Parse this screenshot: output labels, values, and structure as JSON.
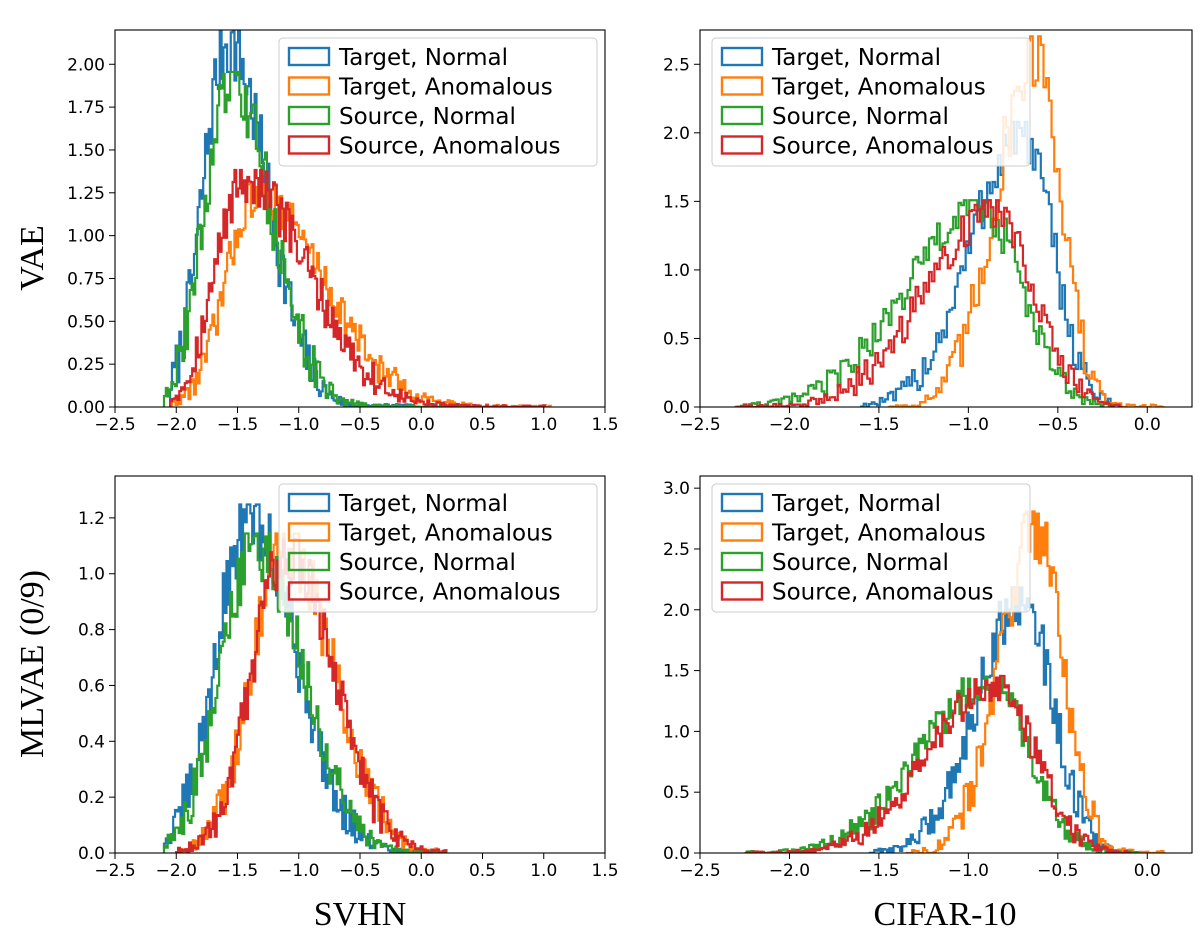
{
  "row_labels": [
    "VAE",
    "MLVAE (0/9)"
  ],
  "col_labels": [
    "SVHN",
    "CIFAR-10"
  ],
  "series_styles": [
    {
      "name": "Target, Normal",
      "color": "#1f77b4"
    },
    {
      "name": "Target, Anomalous",
      "color": "#ff7f0e"
    },
    {
      "name": "Source, Normal",
      "color": "#2ca02c"
    },
    {
      "name": "Source, Anomalous",
      "color": "#d62728"
    }
  ],
  "chart_data": [
    {
      "type": "histogram",
      "row_label": "VAE",
      "col_label": "SVHN",
      "xlim": [
        -2.5,
        1.5
      ],
      "ylim": [
        0,
        2.2
      ],
      "xticks": [
        -2.5,
        -2.0,
        -1.5,
        -1.0,
        -0.5,
        0.0,
        0.5,
        1.0,
        1.5
      ],
      "yticks": [
        0.0,
        0.25,
        0.5,
        0.75,
        1.0,
        1.25,
        1.5,
        1.75,
        2.0
      ],
      "ytick_labels": [
        "0.00",
        "0.25",
        "0.50",
        "0.75",
        "1.00",
        "1.25",
        "1.50",
        "1.75",
        "2.00"
      ],
      "xtick_labels": [
        "−2.5",
        "−2.0",
        "−1.5",
        "−1.0",
        "−0.5",
        "0.0",
        "0.5",
        "1.0",
        "1.5"
      ],
      "legend_position": "upper-right",
      "series": [
        {
          "name": "Target, Normal",
          "color": "#1f77b4",
          "peak_x": -1.58,
          "peak_y": 2.14,
          "range": [
            -2.05,
            0.3
          ],
          "left_width": 0.2,
          "right_width": 0.32
        },
        {
          "name": "Target, Anomalous",
          "color": "#ff7f0e",
          "peak_x": -1.35,
          "peak_y": 1.25,
          "range": [
            -2.05,
            1.05
          ],
          "left_width": 0.24,
          "right_width": 0.55
        },
        {
          "name": "Source, Normal",
          "color": "#2ca02c",
          "peak_x": -1.55,
          "peak_y": 1.88,
          "range": [
            -2.1,
            0.3
          ],
          "left_width": 0.22,
          "right_width": 0.33
        },
        {
          "name": "Source, Anomalous",
          "color": "#d62728",
          "peak_x": -1.45,
          "peak_y": 1.33,
          "range": [
            -2.05,
            1.0
          ],
          "left_width": 0.23,
          "right_width": 0.52
        }
      ]
    },
    {
      "type": "histogram",
      "row_label": "VAE",
      "col_label": "CIFAR-10",
      "xlim": [
        -2.5,
        0.25
      ],
      "ylim": [
        0,
        2.75
      ],
      "xticks": [
        -2.5,
        -2.0,
        -1.5,
        -1.0,
        -0.5,
        0.0
      ],
      "yticks": [
        0.0,
        0.5,
        1.0,
        1.5,
        2.0,
        2.5
      ],
      "ytick_labels": [
        "0.0",
        "0.5",
        "1.0",
        "1.5",
        "2.0",
        "2.5"
      ],
      "xtick_labels": [
        "−2.5",
        "−2.0",
        "−1.5",
        "−1.0",
        "−0.5",
        "0.0"
      ],
      "legend_position": "upper-left",
      "series": [
        {
          "name": "Target, Normal",
          "color": "#1f77b4",
          "peak_x": -0.7,
          "peak_y": 2.0,
          "range": [
            -1.6,
            -0.15
          ],
          "left_width": 0.28,
          "right_width": 0.17
        },
        {
          "name": "Target, Anomalous",
          "color": "#ff7f0e",
          "peak_x": -0.62,
          "peak_y": 2.6,
          "range": [
            -1.45,
            0.08
          ],
          "left_width": 0.22,
          "right_width": 0.14
        },
        {
          "name": "Source, Normal",
          "color": "#2ca02c",
          "peak_x": -0.92,
          "peak_y": 1.45,
          "range": [
            -2.3,
            -0.2
          ],
          "left_width": 0.42,
          "right_width": 0.22
        },
        {
          "name": "Source, Anomalous",
          "color": "#d62728",
          "peak_x": -0.85,
          "peak_y": 1.45,
          "range": [
            -2.3,
            -0.15
          ],
          "left_width": 0.38,
          "right_width": 0.22
        }
      ]
    },
    {
      "type": "histogram",
      "row_label": "MLVAE (0/9)",
      "col_label": "SVHN",
      "xlim": [
        -2.5,
        1.5
      ],
      "ylim": [
        0,
        1.35
      ],
      "xticks": [
        -2.5,
        -2.0,
        -1.5,
        -1.0,
        -0.5,
        0.0,
        0.5,
        1.0,
        1.5
      ],
      "yticks": [
        0.0,
        0.2,
        0.4,
        0.6,
        0.8,
        1.0,
        1.2
      ],
      "ytick_labels": [
        "0.0",
        "0.2",
        "0.4",
        "0.6",
        "0.8",
        "1.0",
        "1.2"
      ],
      "xtick_labels": [
        "−2.5",
        "−2.0",
        "−1.5",
        "−1.0",
        "−0.5",
        "0.0",
        "0.5",
        "1.0",
        "1.5"
      ],
      "legend_position": "upper-right",
      "series": [
        {
          "name": "Target, Normal",
          "color": "#1f77b4",
          "peak_x": -1.4,
          "peak_y": 1.2,
          "range": [
            -2.1,
            0.2
          ],
          "left_width": 0.27,
          "right_width": 0.38
        },
        {
          "name": "Target, Anomalous",
          "color": "#ff7f0e",
          "peak_x": -1.1,
          "peak_y": 1.1,
          "range": [
            -2.0,
            0.2
          ],
          "left_width": 0.28,
          "right_width": 0.38
        },
        {
          "name": "Source, Normal",
          "color": "#2ca02c",
          "peak_x": -1.35,
          "peak_y": 1.1,
          "range": [
            -2.1,
            0.2
          ],
          "left_width": 0.28,
          "right_width": 0.38
        },
        {
          "name": "Source, Anomalous",
          "color": "#d62728",
          "peak_x": -1.1,
          "peak_y": 1.08,
          "range": [
            -2.0,
            0.2
          ],
          "left_width": 0.28,
          "right_width": 0.38
        }
      ]
    },
    {
      "type": "histogram",
      "row_label": "MLVAE (0/9)",
      "col_label": "CIFAR-10",
      "xlim": [
        -2.5,
        0.25
      ],
      "ylim": [
        0,
        3.1
      ],
      "xticks": [
        -2.5,
        -2.0,
        -1.5,
        -1.0,
        -0.5,
        0.0
      ],
      "yticks": [
        0.0,
        0.5,
        1.0,
        1.5,
        2.0,
        2.5,
        3.0
      ],
      "ytick_labels": [
        "0.0",
        "0.5",
        "1.0",
        "1.5",
        "2.0",
        "2.5",
        "3.0"
      ],
      "xtick_labels": [
        "−2.5",
        "−2.0",
        "−1.5",
        "−1.0",
        "−0.5",
        "0.0"
      ],
      "legend_position": "upper-left",
      "series": [
        {
          "name": "Target, Normal",
          "color": "#1f77b4",
          "peak_x": -0.7,
          "peak_y": 2.1,
          "range": [
            -1.55,
            -0.1
          ],
          "left_width": 0.25,
          "right_width": 0.17
        },
        {
          "name": "Target, Anomalous",
          "color": "#ff7f0e",
          "peak_x": -0.62,
          "peak_y": 2.7,
          "range": [
            -1.35,
            0.1
          ],
          "left_width": 0.2,
          "right_width": 0.15
        },
        {
          "name": "Source, Normal",
          "color": "#2ca02c",
          "peak_x": -0.88,
          "peak_y": 1.4,
          "range": [
            -2.25,
            -0.05
          ],
          "left_width": 0.38,
          "right_width": 0.22
        },
        {
          "name": "Source, Anomalous",
          "color": "#d62728",
          "peak_x": -0.85,
          "peak_y": 1.4,
          "range": [
            -2.25,
            -0.1
          ],
          "left_width": 0.36,
          "right_width": 0.22
        }
      ]
    }
  ]
}
